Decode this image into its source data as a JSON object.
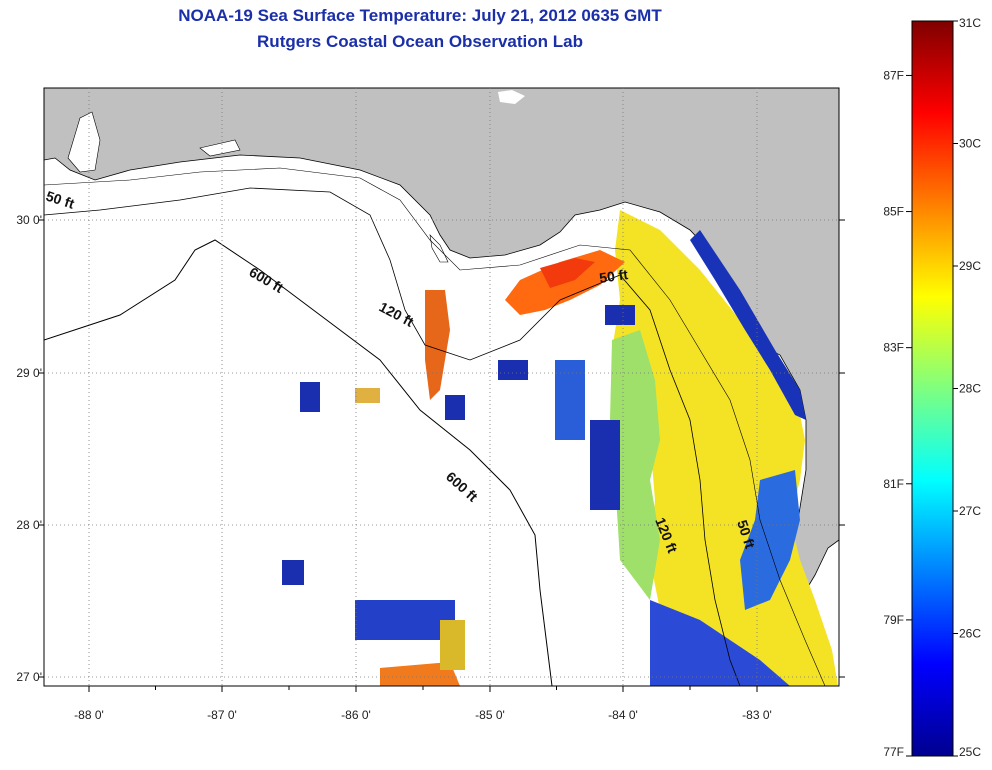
{
  "header": {
    "title": "NOAA-19 Sea Surface Temperature:  July 21, 2012 0635 GMT",
    "subtitle": "Rutgers Coastal Ocean Observation Lab"
  },
  "map": {
    "lon_ticks": [
      "-88 0'",
      "-87 0'",
      "-86 0'",
      "-85 0'",
      "-84 0'",
      "-83 0'"
    ],
    "lat_ticks": [
      "30 0'",
      "29 0'",
      "28 0'",
      "27 0'"
    ],
    "contour_labels": {
      "shelf_50_west": "50 ft",
      "isobath_600_north": "600 ft",
      "isobath_120_north": "120 ft",
      "shelf_50_east": "50 ft",
      "isobath_600_south": "600 ft",
      "isobath_120_south": "120 ft",
      "shelf_50_south": "50 ft"
    },
    "colors": {
      "land": "#c0c0c0",
      "ocean_nodata": "#ffffff",
      "frame": "#000000"
    }
  },
  "colorbar": {
    "celsius_labels": [
      "31C",
      "30C",
      "29C",
      "28C",
      "27C",
      "26C",
      "25C"
    ],
    "fahrenheit_labels": [
      "87F",
      "85F",
      "83F",
      "81F",
      "79F",
      "77F"
    ],
    "range_c": [
      25,
      31
    ],
    "colormap": "jet"
  }
}
